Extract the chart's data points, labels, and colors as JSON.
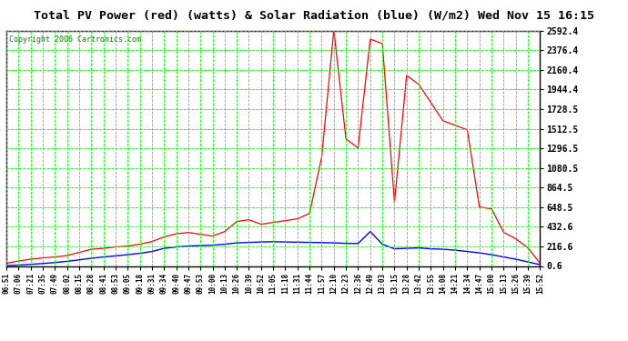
{
  "title": "Total PV Power (red) (watts) & Solar Radiation (blue) (W/m2) Wed Nov 15 16:15",
  "copyright": "Copyright 2006 Cartronics.com",
  "ylabel_right_ticks": [
    0.6,
    216.6,
    432.6,
    648.5,
    864.5,
    1080.5,
    1296.5,
    1512.5,
    1728.5,
    1944.4,
    2160.4,
    2376.4,
    2592.4
  ],
  "ylim": [
    0.6,
    2592.4
  ],
  "x_labels": [
    "06:51",
    "07:06",
    "07:21",
    "07:35",
    "07:49",
    "08:02",
    "08:15",
    "08:28",
    "08:41",
    "08:53",
    "09:05",
    "09:18",
    "09:31",
    "09:34",
    "09:40",
    "09:47",
    "09:53",
    "10:00",
    "10:13",
    "10:26",
    "10:39",
    "10:52",
    "11:05",
    "11:18",
    "11:31",
    "11:44",
    "11:57",
    "12:10",
    "12:23",
    "12:36",
    "12:49",
    "13:03",
    "13:15",
    "13:28",
    "13:42",
    "13:55",
    "14:08",
    "14:21",
    "14:34",
    "14:47",
    "15:00",
    "15:13",
    "15:26",
    "15:39",
    "15:52"
  ],
  "plot_bg_color": "#ffffff",
  "title_bg_color": "#ffffff",
  "grid_color": "#00ff00",
  "red_color": "#ff0000",
  "blue_color": "#0000ff",
  "red_data": [
    30,
    55,
    75,
    90,
    100,
    115,
    150,
    185,
    195,
    210,
    220,
    240,
    270,
    320,
    355,
    370,
    350,
    330,
    380,
    490,
    510,
    460,
    480,
    500,
    520,
    580,
    1200,
    2600,
    1400,
    1300,
    2500,
    2450,
    700,
    2100,
    2000,
    1800,
    1600,
    1550,
    1500,
    650,
    630,
    370,
    300,
    200,
    30
  ],
  "blue_data": [
    5,
    10,
    18,
    28,
    38,
    52,
    68,
    85,
    100,
    112,
    125,
    140,
    160,
    195,
    210,
    220,
    225,
    230,
    240,
    255,
    260,
    265,
    268,
    265,
    263,
    260,
    258,
    255,
    250,
    248,
    380,
    240,
    190,
    195,
    200,
    190,
    185,
    175,
    160,
    145,
    125,
    100,
    75,
    45,
    15
  ]
}
